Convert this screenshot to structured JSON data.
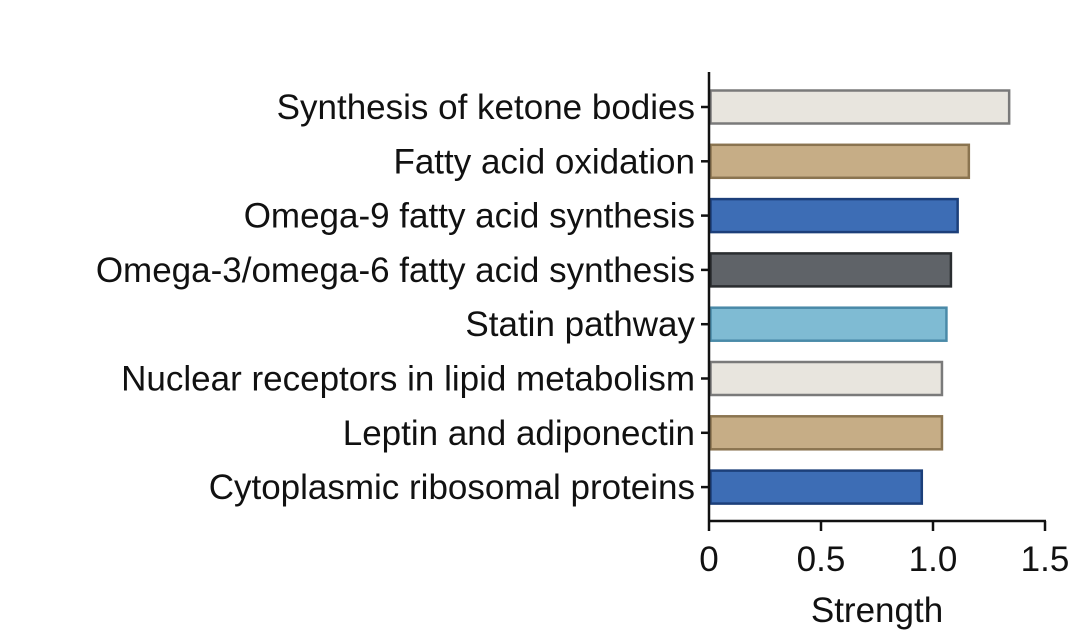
{
  "chart_data": {
    "type": "bar",
    "orientation": "horizontal",
    "categories": [
      "Synthesis of ketone bodies",
      "Fatty acid oxidation",
      "Omega-9 fatty acid synthesis",
      "Omega-3/omega-6 fatty acid synthesis",
      "Statin pathway",
      "Nuclear receptors in lipid metabolism",
      "Leptin and adiponectin",
      "Cytoplasmic ribosomal proteins"
    ],
    "values": [
      1.34,
      1.16,
      1.11,
      1.08,
      1.06,
      1.04,
      1.04,
      0.95
    ],
    "colors": [
      "#e8e5de",
      "#c6ad86",
      "#3d6db5",
      "#5f6368",
      "#7fbbd3",
      "#e8e5de",
      "#c6ad86",
      "#3d6db5"
    ],
    "edge_colors": [
      "#7a7a7a",
      "#8a7450",
      "#1c3f7a",
      "#2a2d30",
      "#4a8aa8",
      "#7a7a7a",
      "#8a7450",
      "#1c3f7a"
    ],
    "title": "",
    "xlabel": "Strength",
    "ylabel": "",
    "xlim": [
      0,
      1.5
    ],
    "xticks": [
      0,
      0.5,
      1.0,
      1.5
    ],
    "xtick_labels": [
      "0",
      "0.5",
      "1.0",
      "1.5"
    ],
    "grid": false,
    "legend": "none"
  }
}
